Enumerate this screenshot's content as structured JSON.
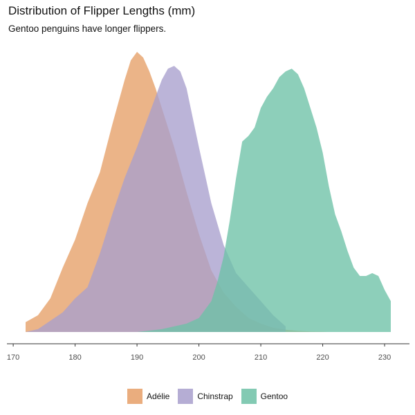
{
  "chart_data": {
    "type": "area",
    "title": "Distribution of Flipper Lengths (mm)",
    "subtitle": "Gentoo penguins have longer flippers.",
    "xlabel": "",
    "ylabel": "",
    "xlim": [
      172,
      231
    ],
    "ylim": [
      0,
      1
    ],
    "x_ticks": [
      170,
      180,
      190,
      200,
      210,
      220,
      230
    ],
    "legend_position": "bottom",
    "grid": false,
    "series": [
      {
        "name": "Adélie",
        "color": "#E69F67",
        "x": [
          172,
          174,
          176,
          178,
          180,
          182,
          184,
          186,
          188,
          189,
          190,
          191,
          192,
          193,
          194,
          196,
          198,
          200,
          202,
          204,
          206,
          208,
          210,
          212,
          214,
          216,
          218,
          220,
          221
        ],
        "y": [
          0.035,
          0.06,
          0.12,
          0.23,
          0.33,
          0.46,
          0.57,
          0.74,
          0.9,
          0.97,
          1.0,
          0.98,
          0.93,
          0.87,
          0.8,
          0.66,
          0.5,
          0.35,
          0.22,
          0.14,
          0.09,
          0.05,
          0.03,
          0.015,
          0.008,
          0.004,
          0.002,
          0.001,
          0.0
        ]
      },
      {
        "name": "Chinstrap",
        "color": "#A89FCD",
        "x": [
          172,
          174,
          176,
          178,
          180,
          182,
          184,
          186,
          188,
          190,
          192,
          194,
          195,
          196,
          197,
          198,
          200,
          202,
          204,
          206,
          208,
          210,
          212,
          214
        ],
        "y": [
          0.0,
          0.01,
          0.04,
          0.07,
          0.12,
          0.16,
          0.28,
          0.42,
          0.55,
          0.66,
          0.78,
          0.9,
          0.94,
          0.95,
          0.93,
          0.87,
          0.66,
          0.46,
          0.31,
          0.21,
          0.16,
          0.11,
          0.06,
          0.02
        ]
      },
      {
        "name": "Gentoo",
        "color": "#6DC1A6",
        "x": [
          190,
          194,
          198,
          200,
          202,
          203,
          204,
          205,
          206,
          207,
          208,
          209,
          210,
          211,
          212,
          213,
          214,
          215,
          216,
          217,
          218,
          219,
          220,
          221,
          222,
          223,
          224,
          225,
          226,
          227,
          228,
          229,
          230,
          231
        ],
        "y": [
          0.0,
          0.01,
          0.03,
          0.05,
          0.11,
          0.18,
          0.27,
          0.4,
          0.55,
          0.68,
          0.7,
          0.73,
          0.8,
          0.84,
          0.87,
          0.91,
          0.93,
          0.94,
          0.92,
          0.87,
          0.8,
          0.73,
          0.64,
          0.52,
          0.42,
          0.36,
          0.29,
          0.23,
          0.2,
          0.2,
          0.21,
          0.2,
          0.15,
          0.11
        ]
      }
    ]
  }
}
